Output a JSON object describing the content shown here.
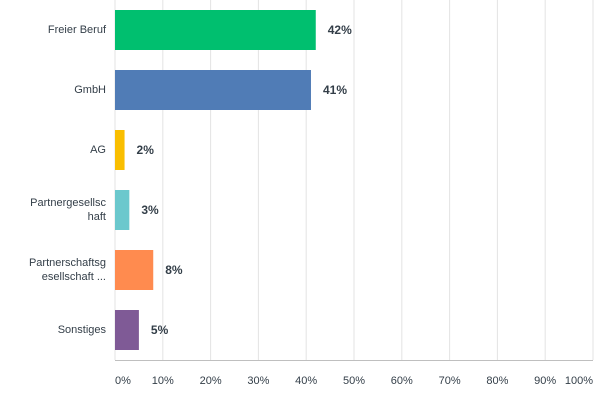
{
  "chart_data": {
    "type": "bar",
    "orientation": "horizontal",
    "categories": [
      [
        "Freier Beruf"
      ],
      [
        "GmbH"
      ],
      [
        "AG"
      ],
      [
        "Partnergesellsc",
        "haft"
      ],
      [
        "Partnerschaftsg",
        "esellschaft ..."
      ],
      [
        "Sonstiges"
      ]
    ],
    "values": [
      42,
      41,
      2,
      3,
      8,
      5
    ],
    "value_labels": [
      "42%",
      "41%",
      "2%",
      "3%",
      "8%",
      "5%"
    ],
    "colors": [
      "#00bf6f",
      "#507cb6",
      "#f9be00",
      "#6bc8cd",
      "#ff8b4f",
      "#7f5a96"
    ],
    "xlim": [
      0,
      100
    ],
    "x_ticks": [
      0,
      10,
      20,
      30,
      40,
      50,
      60,
      70,
      80,
      90,
      100
    ],
    "x_tick_labels": [
      "0%",
      "10%",
      "20%",
      "30%",
      "40%",
      "50%",
      "60%",
      "70%",
      "80%",
      "90%",
      "100%"
    ],
    "grid": true,
    "title": "",
    "xlabel": "",
    "ylabel": ""
  }
}
